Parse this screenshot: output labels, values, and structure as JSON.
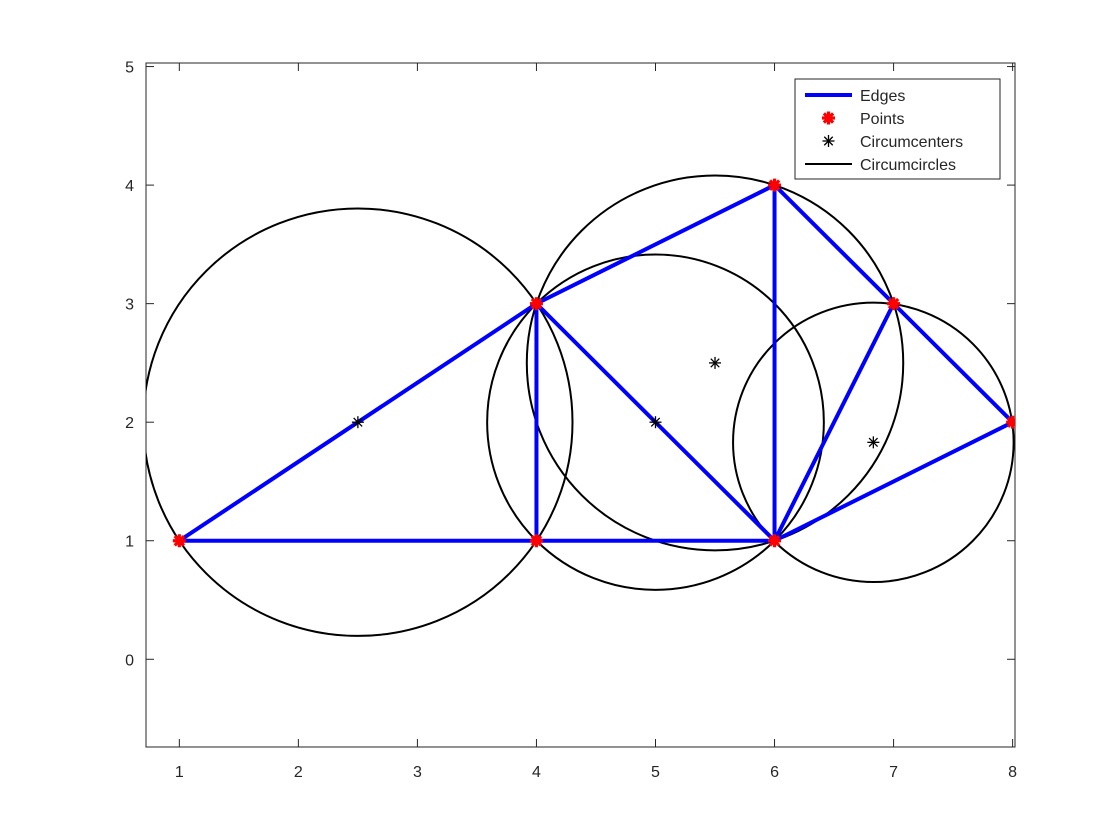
{
  "chart_data": {
    "type": "scatter",
    "title": "",
    "xlabel": "",
    "ylabel": "",
    "xlim": [
      0.72,
      8.02
    ],
    "ylim": [
      -0.74,
      5.03
    ],
    "xticks": [
      1,
      2,
      3,
      4,
      5,
      6,
      7,
      8
    ],
    "yticks": [
      0,
      1,
      2,
      3,
      4,
      5
    ],
    "grid": false,
    "legend_position": "top-right",
    "points": [
      [
        1,
        1
      ],
      [
        4,
        1
      ],
      [
        4,
        3
      ],
      [
        6,
        1
      ],
      [
        6,
        4
      ],
      [
        7,
        3
      ],
      [
        8,
        2
      ]
    ],
    "edges": [
      [
        [
          1,
          1
        ],
        [
          4,
          1
        ]
      ],
      [
        [
          1,
          1
        ],
        [
          4,
          3
        ]
      ],
      [
        [
          4,
          1
        ],
        [
          4,
          3
        ]
      ],
      [
        [
          4,
          1
        ],
        [
          6,
          1
        ]
      ],
      [
        [
          4,
          3
        ],
        [
          6,
          1
        ]
      ],
      [
        [
          4,
          3
        ],
        [
          6,
          4
        ]
      ],
      [
        [
          6,
          1
        ],
        [
          6,
          4
        ]
      ],
      [
        [
          6,
          4
        ],
        [
          7,
          3
        ]
      ],
      [
        [
          6,
          1
        ],
        [
          7,
          3
        ]
      ],
      [
        [
          6,
          1
        ],
        [
          8,
          2
        ]
      ],
      [
        [
          7,
          3
        ],
        [
          8,
          2
        ]
      ]
    ],
    "circumcenters": [
      [
        2.5,
        2.0
      ],
      [
        5.0,
        2.0
      ],
      [
        5.5,
        2.5
      ],
      [
        6.83,
        1.83
      ]
    ],
    "circumradii": [
      1.8028,
      1.4142,
      1.5811,
      1.1785
    ],
    "series": [
      {
        "name": "Edges",
        "color": "#0000ff",
        "marker": "line"
      },
      {
        "name": "Points",
        "color": "#ff0000",
        "marker": "filled-star"
      },
      {
        "name": "Circumcenters",
        "color": "#000000",
        "marker": "asterisk"
      },
      {
        "name": "Circumcircles",
        "color": "#000000",
        "marker": "line"
      }
    ]
  }
}
